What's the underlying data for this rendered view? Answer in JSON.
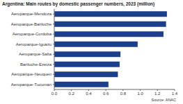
{
  "chart_data": {
    "type": "bar",
    "title": "Argentina: Main routes by domestic passenger numbers, 2023 (million)",
    "source": "Source: ANAC",
    "orientation": "horizontal",
    "categories": [
      "Aeroparque-Mendoza",
      "Aeroparque-Bariloche",
      "Aeroparque-Cordoba",
      "Aeroparque-Iguazu",
      "Aeroparque-Salta",
      "Bariloche-Ezeiza",
      "Aeroparque-Neuquen",
      "Aeroparque-Tucuman"
    ],
    "values": [
      1.31,
      1.3,
      1.27,
      0.97,
      0.77,
      0.76,
      0.74,
      0.63
    ],
    "color": "#1c3f8c",
    "xlim": [
      0,
      1.4
    ],
    "xticks": [
      {
        "value": 0,
        "label": "0.0"
      },
      0.2,
      0.4,
      0.6,
      0.8,
      {
        "value": 1,
        "label": "1.0"
      },
      1.2,
      1.4
    ],
    "grid": false
  }
}
